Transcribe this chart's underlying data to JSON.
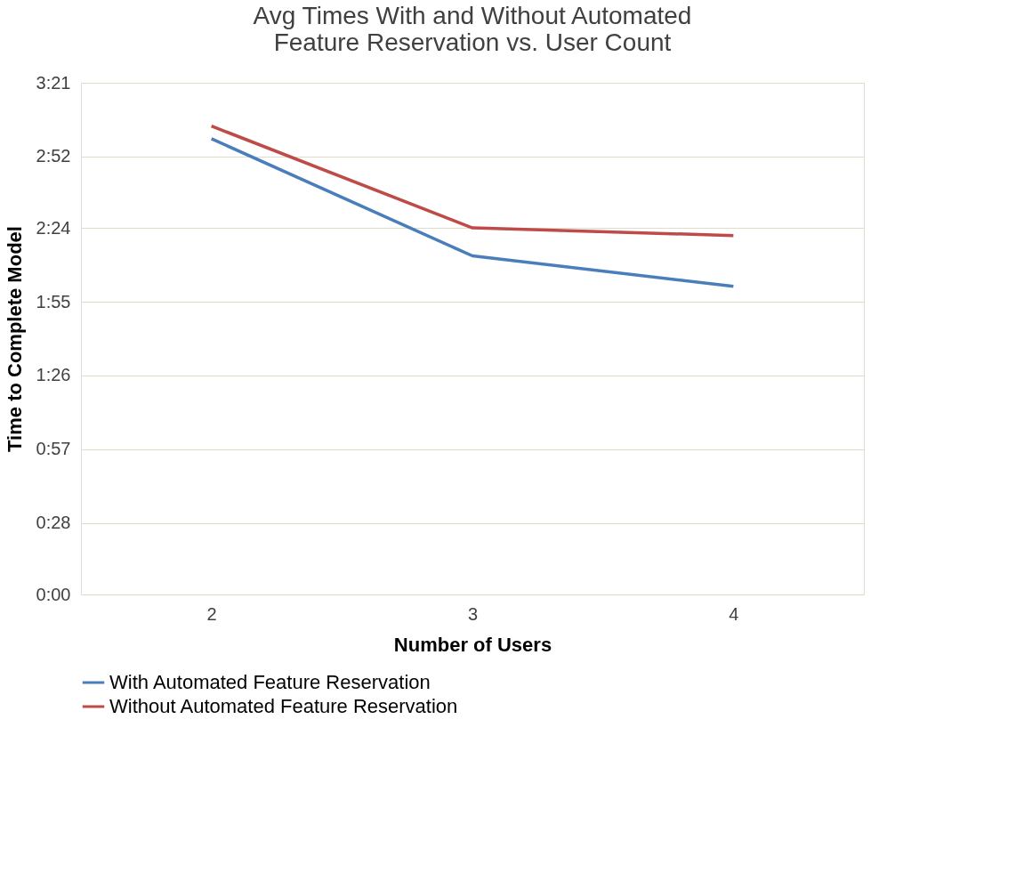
{
  "chart_data": {
    "type": "line",
    "title": "Avg Times With and Without Automated Feature Reservation vs. User Count",
    "xlabel": "Number of Users",
    "ylabel": "Time to Complete Model",
    "categories": [
      "2",
      "3",
      "4"
    ],
    "series": [
      {
        "name": "With Automated Feature Reservation",
        "color": "#4a7ebb",
        "values": [
          179,
          133,
          121
        ]
      },
      {
        "name": "Without Automated Feature Reservation",
        "color": "#be4b48",
        "values": [
          184,
          144,
          141
        ]
      }
    ],
    "ylim": [
      0,
      201
    ],
    "yticks": [
      {
        "value": 0,
        "label": "0:00"
      },
      {
        "value": 28,
        "label": "0:28"
      },
      {
        "value": 57,
        "label": "0:57"
      },
      {
        "value": 86,
        "label": "1:26"
      },
      {
        "value": 115,
        "label": "1:55"
      },
      {
        "value": 144,
        "label": "2:24"
      },
      {
        "value": 172,
        "label": "2:52"
      },
      {
        "value": 201,
        "label": "3:21"
      }
    ],
    "grid": "y",
    "legend": "bottom",
    "marker": "none",
    "line_style": "solid"
  }
}
